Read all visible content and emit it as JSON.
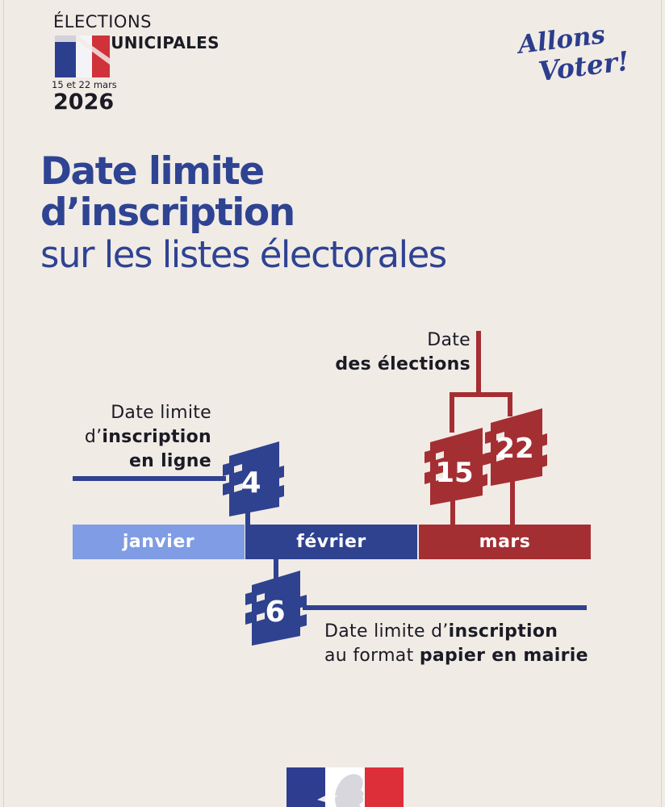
{
  "header": {
    "elections_line1": "ÉLECTIONS",
    "elections_line2": "MUNICIPALES",
    "dates": "15 et 22 mars",
    "year": "2026",
    "slogan_line1": "Allons",
    "slogan_line2": "Voter!"
  },
  "title": {
    "line1": "Date limite",
    "line2": "d’inscription",
    "line3": "sur les listes électorales"
  },
  "timeline": {
    "months": [
      "janvier",
      "février",
      "mars"
    ],
    "month_colors": [
      "#7f9ce4",
      "#2f428f",
      "#a42f33"
    ],
    "online_deadline": {
      "day": "4",
      "label_pre": "Date limite",
      "label_d": "d’",
      "label_bold1": "inscription",
      "label_bold2": "en ligne"
    },
    "paper_deadline": {
      "day": "6",
      "label_pre": "Date limite d’",
      "label_bold1": "inscription",
      "label_mid": "au format ",
      "label_bold2": "papier en mairie"
    },
    "elections": {
      "days": [
        "15",
        "22"
      ],
      "label_pre": "Date",
      "label_bold": "des élections"
    }
  },
  "colors": {
    "navy": "#2f428f",
    "red": "#a42f33",
    "light_blue": "#7f9ce4",
    "background": "#f1ebe6"
  }
}
